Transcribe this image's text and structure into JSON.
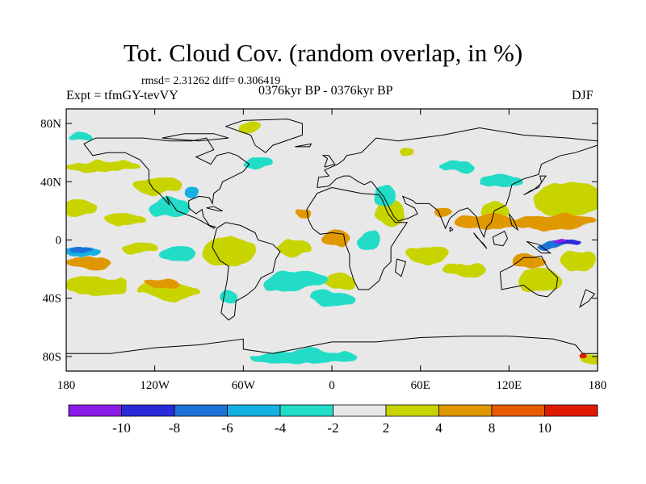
{
  "header": {
    "title": "Tot. Cloud Cov. (random overlap, in %)",
    "stats": "rmsd= 2.31262 diff= 0.306419",
    "experiment": "Expt = tfmGY-tevVY",
    "period": "0376kyr BP - 0376kyr BP",
    "season": "DJF"
  },
  "axes": {
    "lon_range": [
      -180,
      180
    ],
    "lat_range": [
      -90,
      90
    ],
    "x_ticks": [
      {
        "lon": -180,
        "label": "180"
      },
      {
        "lon": -120,
        "label": "120W"
      },
      {
        "lon": -60,
        "label": "60W"
      },
      {
        "lon": 0,
        "label": "0"
      },
      {
        "lon": 60,
        "label": "60E"
      },
      {
        "lon": 120,
        "label": "120E"
      },
      {
        "lon": 180,
        "label": "180"
      }
    ],
    "y_ticks": [
      {
        "lat": 80,
        "label": "80N"
      },
      {
        "lat": 40,
        "label": "40N"
      },
      {
        "lat": 0,
        "label": "0"
      },
      {
        "lat": -40,
        "label": "40S"
      },
      {
        "lat": -80,
        "label": "80S"
      }
    ]
  },
  "colorbar": {
    "colors": [
      "#8c1ce8",
      "#2a2ad8",
      "#1a72d8",
      "#14b0e0",
      "#20dcc8",
      "#e8e8e8",
      "#c8d400",
      "#e09800",
      "#e85a00",
      "#e01a00"
    ],
    "labels": [
      "-10",
      "-8",
      "-6",
      "-4",
      "-2",
      "2",
      "4",
      "8",
      "10"
    ]
  },
  "map": {
    "background": "#e8e8e8",
    "anomaly_regions": [
      {
        "class": 6,
        "lon": -155,
        "lat": 50,
        "rx": 25,
        "ry": 4
      },
      {
        "class": 6,
        "lon": -118,
        "lat": 38,
        "rx": 16,
        "ry": 6
      },
      {
        "class": 6,
        "lon": -170,
        "lat": 22,
        "rx": 12,
        "ry": 6
      },
      {
        "class": 6,
        "lon": -140,
        "lat": 14,
        "rx": 14,
        "ry": 4
      },
      {
        "class": 6,
        "lon": -130,
        "lat": -5,
        "rx": 12,
        "ry": 4
      },
      {
        "class": 6,
        "lon": -160,
        "lat": -32,
        "rx": 22,
        "ry": 7
      },
      {
        "class": 6,
        "lon": -110,
        "lat": -35,
        "rx": 20,
        "ry": 6
      },
      {
        "class": 6,
        "lon": -70,
        "lat": -8,
        "rx": 18,
        "ry": 10
      },
      {
        "class": 6,
        "lon": -25,
        "lat": -5,
        "rx": 12,
        "ry": 5
      },
      {
        "class": 6,
        "lon": 5,
        "lat": -28,
        "rx": 10,
        "ry": 5
      },
      {
        "class": 6,
        "lon": 40,
        "lat": 18,
        "rx": 10,
        "ry": 8
      },
      {
        "class": 6,
        "lon": 65,
        "lat": -10,
        "rx": 14,
        "ry": 5
      },
      {
        "class": 6,
        "lon": 90,
        "lat": -20,
        "rx": 15,
        "ry": 5
      },
      {
        "class": 6,
        "lon": 160,
        "lat": 28,
        "rx": 24,
        "ry": 12
      },
      {
        "class": 6,
        "lon": 110,
        "lat": 20,
        "rx": 10,
        "ry": 5
      },
      {
        "class": 6,
        "lon": 140,
        "lat": -28,
        "rx": 15,
        "ry": 8
      },
      {
        "class": 6,
        "lon": 168,
        "lat": -15,
        "rx": 12,
        "ry": 7
      },
      {
        "class": 6,
        "lon": -55,
        "lat": 78,
        "rx": 8,
        "ry": 4
      },
      {
        "class": 6,
        "lon": 50,
        "lat": 62,
        "rx": 6,
        "ry": 3
      },
      {
        "class": 6,
        "lon": 175,
        "lat": -82,
        "rx": 8,
        "ry": 3
      },
      {
        "class": 7,
        "lon": 3,
        "lat": 0,
        "rx": 10,
        "ry": 6
      },
      {
        "class": 7,
        "lon": 105,
        "lat": 12,
        "rx": 22,
        "ry": 5
      },
      {
        "class": 7,
        "lon": 150,
        "lat": 12,
        "rx": 30,
        "ry": 5
      },
      {
        "class": 7,
        "lon": 135,
        "lat": -15,
        "rx": 12,
        "ry": 5
      },
      {
        "class": 7,
        "lon": -165,
        "lat": -15,
        "rx": 15,
        "ry": 4
      },
      {
        "class": 7,
        "lon": -115,
        "lat": -30,
        "rx": 12,
        "ry": 3
      },
      {
        "class": 7,
        "lon": 75,
        "lat": 18,
        "rx": 6,
        "ry": 4
      },
      {
        "class": 7,
        "lon": -20,
        "lat": 18,
        "rx": 5,
        "ry": 3
      },
      {
        "class": 4,
        "lon": -25,
        "lat": -28,
        "rx": 22,
        "ry": 7
      },
      {
        "class": 4,
        "lon": -110,
        "lat": 22,
        "rx": 14,
        "ry": 7
      },
      {
        "class": 4,
        "lon": -105,
        "lat": -10,
        "rx": 12,
        "ry": 5
      },
      {
        "class": 4,
        "lon": -50,
        "lat": 52,
        "rx": 10,
        "ry": 5
      },
      {
        "class": 4,
        "lon": 85,
        "lat": 50,
        "rx": 12,
        "ry": 4
      },
      {
        "class": 4,
        "lon": 35,
        "lat": 30,
        "rx": 8,
        "ry": 8
      },
      {
        "class": 4,
        "lon": 25,
        "lat": 0,
        "rx": 8,
        "ry": 6
      },
      {
        "class": 4,
        "lon": -70,
        "lat": -40,
        "rx": 6,
        "ry": 5
      },
      {
        "class": 4,
        "lon": -20,
        "lat": -80,
        "rx": 35,
        "ry": 5
      },
      {
        "class": 4,
        "lon": -170,
        "lat": 70,
        "rx": 8,
        "ry": 3
      },
      {
        "class": 4,
        "lon": 115,
        "lat": 40,
        "rx": 15,
        "ry": 4
      },
      {
        "class": 4,
        "lon": 0,
        "lat": -40,
        "rx": 15,
        "ry": 5
      },
      {
        "class": 3,
        "lon": -170,
        "lat": -8,
        "rx": 12,
        "ry": 3
      },
      {
        "class": 3,
        "lon": -95,
        "lat": 32,
        "rx": 5,
        "ry": 4
      },
      {
        "class": 2,
        "lon": -170,
        "lat": -7,
        "rx": 8,
        "ry": 2
      },
      {
        "class": 2,
        "lon": 150,
        "lat": -3,
        "rx": 10,
        "ry": 3
      },
      {
        "class": 1,
        "lon": 160,
        "lat": -2,
        "rx": 8,
        "ry": 2
      },
      {
        "class": 0,
        "lon": 155,
        "lat": -1,
        "rx": 5,
        "ry": 1.5
      },
      {
        "class": 9,
        "lon": 170,
        "lat": -80,
        "rx": 3,
        "ry": 2
      }
    ],
    "coastlines": [
      [
        [
          -168,
          66
        ],
        [
          -160,
          70
        ],
        [
          -140,
          70
        ],
        [
          -128,
          70
        ],
        [
          -110,
          68
        ],
        [
          -95,
          68
        ],
        [
          -85,
          70
        ],
        [
          -80,
          62
        ],
        [
          -92,
          57
        ],
        [
          -82,
          52
        ],
        [
          -78,
          58
        ],
        [
          -70,
          60
        ],
        [
          -64,
          58
        ],
        [
          -56,
          52
        ],
        [
          -60,
          47
        ],
        [
          -66,
          44
        ],
        [
          -70,
          42
        ],
        [
          -74,
          40
        ],
        [
          -76,
          35
        ],
        [
          -80,
          32
        ],
        [
          -81,
          25
        ],
        [
          -83,
          29
        ],
        [
          -90,
          30
        ],
        [
          -97,
          27
        ],
        [
          -97,
          22
        ],
        [
          -92,
          18
        ],
        [
          -88,
          21
        ],
        [
          -87,
          16
        ],
        [
          -83,
          10
        ],
        [
          -79,
          9
        ],
        [
          -80,
          8
        ],
        [
          -85,
          11
        ],
        [
          -92,
          15
        ],
        [
          -105,
          20
        ],
        [
          -112,
          30
        ],
        [
          -110,
          24
        ],
        [
          -117,
          32
        ],
        [
          -121,
          35
        ],
        [
          -124,
          40
        ],
        [
          -124,
          48
        ],
        [
          -130,
          55
        ],
        [
          -140,
          60
        ],
        [
          -152,
          60
        ],
        [
          -162,
          58
        ],
        [
          -165,
          62
        ],
        [
          -168,
          66
        ]
      ],
      [
        [
          -78,
          8
        ],
        [
          -72,
          12
        ],
        [
          -62,
          10
        ],
        [
          -52,
          5
        ],
        [
          -50,
          0
        ],
        [
          -40,
          -3
        ],
        [
          -35,
          -8
        ],
        [
          -38,
          -13
        ],
        [
          -40,
          -22
        ],
        [
          -48,
          -26
        ],
        [
          -52,
          -33
        ],
        [
          -58,
          -38
        ],
        [
          -65,
          -42
        ],
        [
          -66,
          -52
        ],
        [
          -70,
          -55
        ],
        [
          -75,
          -50
        ],
        [
          -73,
          -38
        ],
        [
          -71,
          -28
        ],
        [
          -70,
          -18
        ],
        [
          -76,
          -14
        ],
        [
          -81,
          -5
        ],
        [
          -80,
          0
        ],
        [
          -78,
          8
        ]
      ],
      [
        [
          -17,
          21
        ],
        [
          -16,
          14
        ],
        [
          -13,
          8
        ],
        [
          -8,
          4
        ],
        [
          0,
          5
        ],
        [
          8,
          4
        ],
        [
          9,
          -2
        ],
        [
          12,
          -10
        ],
        [
          12,
          -18
        ],
        [
          15,
          -28
        ],
        [
          18,
          -34
        ],
        [
          25,
          -34
        ],
        [
          32,
          -28
        ],
        [
          35,
          -20
        ],
        [
          40,
          -15
        ],
        [
          40,
          -5
        ],
        [
          45,
          3
        ],
        [
          51,
          12
        ],
        [
          43,
          12
        ],
        [
          38,
          18
        ],
        [
          34,
          28
        ],
        [
          32,
          31
        ],
        [
          20,
          32
        ],
        [
          10,
          34
        ],
        [
          0,
          36
        ],
        [
          -10,
          32
        ],
        [
          -17,
          21
        ]
      ],
      [
        [
          -10,
          36
        ],
        [
          -9,
          43
        ],
        [
          -2,
          44
        ],
        [
          -5,
          48
        ],
        [
          4,
          52
        ],
        [
          8,
          55
        ],
        [
          10,
          58
        ],
        [
          20,
          60
        ],
        [
          30,
          70
        ],
        [
          45,
          68
        ],
        [
          60,
          70
        ],
        [
          75,
          72
        ],
        [
          100,
          77
        ],
        [
          130,
          72
        ],
        [
          160,
          70
        ],
        [
          180,
          68
        ],
        [
          180,
          65
        ],
        [
          165,
          60
        ],
        [
          155,
          58
        ],
        [
          142,
          52
        ],
        [
          140,
          45
        ],
        [
          130,
          42
        ],
        [
          122,
          38
        ],
        [
          120,
          30
        ],
        [
          118,
          24
        ],
        [
          110,
          20
        ],
        [
          108,
          12
        ],
        [
          105,
          9
        ],
        [
          103,
          2
        ],
        [
          100,
          8
        ],
        [
          98,
          16
        ],
        [
          92,
          22
        ],
        [
          86,
          20
        ],
        [
          80,
          15
        ],
        [
          77,
          8
        ],
        [
          72,
          20
        ],
        [
          66,
          25
        ],
        [
          57,
          25
        ],
        [
          55,
          27
        ],
        [
          48,
          30
        ],
        [
          50,
          25
        ],
        [
          56,
          22
        ],
        [
          58,
          18
        ],
        [
          52,
          15
        ],
        [
          45,
          13
        ],
        [
          42,
          16
        ],
        [
          35,
          30
        ],
        [
          30,
          36
        ],
        [
          27,
          40
        ],
        [
          26,
          40
        ],
        [
          22,
          38
        ],
        [
          18,
          40
        ],
        [
          12,
          44
        ],
        [
          8,
          44
        ],
        [
          3,
          42
        ],
        [
          -2,
          37
        ],
        [
          -10,
          36
        ]
      ],
      [
        [
          114,
          -22
        ],
        [
          122,
          -18
        ],
        [
          130,
          -12
        ],
        [
          137,
          -12
        ],
        [
          142,
          -11
        ],
        [
          146,
          -19
        ],
        [
          153,
          -26
        ],
        [
          152,
          -33
        ],
        [
          146,
          -39
        ],
        [
          140,
          -38
        ],
        [
          135,
          -35
        ],
        [
          130,
          -31
        ],
        [
          115,
          -34
        ],
        [
          114,
          -22
        ]
      ],
      [
        [
          -72,
          78
        ],
        [
          -60,
          82
        ],
        [
          -30,
          83
        ],
        [
          -20,
          80
        ],
        [
          -20,
          72
        ],
        [
          -40,
          65
        ],
        [
          -45,
          60
        ],
        [
          -52,
          65
        ],
        [
          -55,
          72
        ],
        [
          -72,
          78
        ]
      ],
      [
        [
          -180,
          -78
        ],
        [
          -150,
          -78
        ],
        [
          -120,
          -74
        ],
        [
          -90,
          -72
        ],
        [
          -60,
          -68
        ],
        [
          -60,
          -75
        ],
        [
          -40,
          -78
        ],
        [
          -20,
          -74
        ],
        [
          0,
          -70
        ],
        [
          30,
          -70
        ],
        [
          60,
          -67
        ],
        [
          90,
          -66
        ],
        [
          120,
          -66
        ],
        [
          150,
          -68
        ],
        [
          165,
          -72
        ],
        [
          170,
          -78
        ],
        [
          180,
          -78
        ]
      ],
      [
        [
          -5,
          50
        ],
        [
          -3,
          56
        ],
        [
          -6,
          58
        ],
        [
          -2,
          58
        ],
        [
          2,
          52
        ],
        [
          -5,
          50
        ]
      ],
      [
        [
          130,
          31
        ],
        [
          135,
          34
        ],
        [
          140,
          36
        ],
        [
          142,
          40
        ],
        [
          141,
          44
        ],
        [
          145,
          44
        ],
        [
          141,
          38
        ],
        [
          136,
          34
        ],
        [
          130,
          31
        ]
      ],
      [
        [
          96,
          5
        ],
        [
          100,
          0
        ],
        [
          105,
          -6
        ],
        [
          103,
          -3
        ],
        [
          98,
          2
        ],
        [
          96,
          5
        ]
      ],
      [
        [
          109,
          2
        ],
        [
          110,
          -3
        ],
        [
          116,
          -4
        ],
        [
          119,
          1
        ],
        [
          117,
          6
        ],
        [
          109,
          2
        ]
      ],
      [
        [
          132,
          -1
        ],
        [
          140,
          -3
        ],
        [
          148,
          -9
        ],
        [
          142,
          -9
        ],
        [
          132,
          -1
        ]
      ],
      [
        [
          44,
          -13
        ],
        [
          50,
          -15
        ],
        [
          47,
          -25
        ],
        [
          43,
          -22
        ],
        [
          44,
          -13
        ]
      ],
      [
        [
          172,
          -34
        ],
        [
          178,
          -37
        ],
        [
          174,
          -42
        ],
        [
          168,
          -46
        ],
        [
          172,
          -34
        ]
      ],
      [
        [
          -25,
          64
        ],
        [
          -14,
          66
        ],
        [
          -15,
          64
        ],
        [
          -25,
          64
        ]
      ],
      [
        [
          -85,
          22
        ],
        [
          -77,
          20
        ],
        [
          -74,
          20
        ],
        [
          -80,
          23
        ],
        [
          -85,
          22
        ]
      ],
      [
        [
          80,
          9
        ],
        [
          82,
          7
        ],
        [
          80,
          6
        ],
        [
          80,
          9
        ]
      ],
      [
        [
          120,
          18
        ],
        [
          123,
          14
        ],
        [
          126,
          7
        ],
        [
          122,
          10
        ],
        [
          120,
          18
        ]
      ],
      [
        [
          -115,
          70
        ],
        [
          -100,
          73
        ],
        [
          -80,
          73
        ],
        [
          -70,
          70
        ],
        [
          -90,
          68
        ],
        [
          -115,
          70
        ]
      ]
    ]
  }
}
